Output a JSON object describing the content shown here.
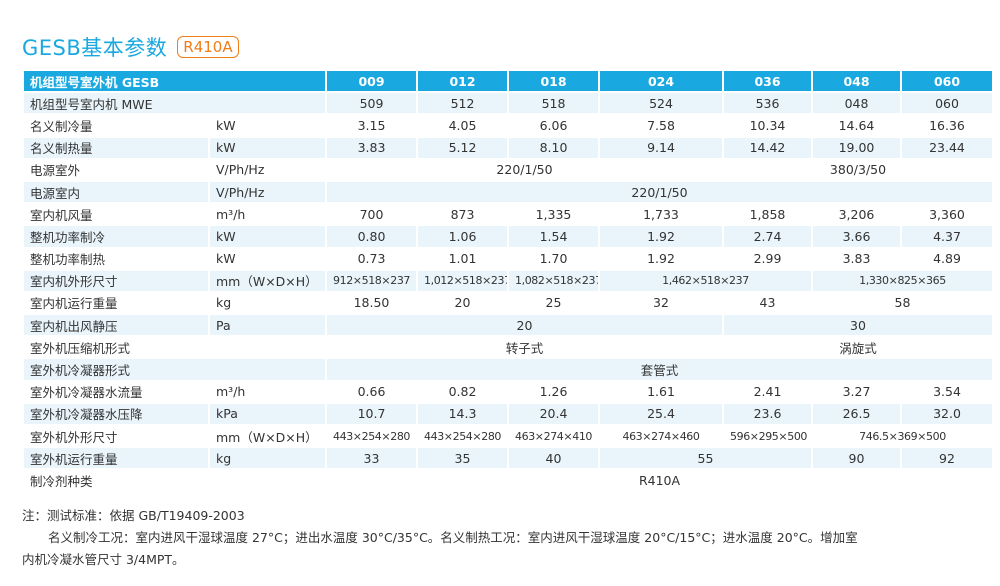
{
  "header": {
    "title": "GESB基本参数",
    "badge": "R410A"
  },
  "table": {
    "header_label": "机组型号室外机 GESB",
    "models": [
      "009",
      "012",
      "018",
      "024",
      "036",
      "048",
      "060"
    ],
    "rows": {
      "indoor_model": {
        "label": "机组型号室内机 MWE",
        "unit": "",
        "values": [
          "509",
          "512",
          "518",
          "524",
          "536",
          "048",
          "060"
        ]
      },
      "cooling": {
        "label": "名义制冷量",
        "unit": "kW",
        "values": [
          "3.15",
          "4.05",
          "6.06",
          "7.58",
          "10.34",
          "14.64",
          "16.36"
        ]
      },
      "heating": {
        "label": "名义制热量",
        "unit": "kW",
        "values": [
          "3.83",
          "5.12",
          "8.10",
          "9.14",
          "14.42",
          "19.00",
          "23.44"
        ]
      },
      "power_outdoor": {
        "label": "电源室外",
        "unit": "V/Ph/Hz",
        "values": [
          "220/1/50",
          "380/3/50"
        ]
      },
      "power_indoor": {
        "label": "电源室内",
        "unit": "V/Ph/Hz",
        "values": [
          "220/1/50"
        ]
      },
      "airflow": {
        "label": "室内机风量",
        "unit": "m³/h",
        "values": [
          "700",
          "873",
          "1,335",
          "1,733",
          "1,858",
          "3,206",
          "3,360"
        ]
      },
      "power_cool": {
        "label": "整机功率制冷",
        "unit": "kW",
        "values": [
          "0.80",
          "1.06",
          "1.54",
          "1.92",
          "2.74",
          "3.66",
          "4.37"
        ]
      },
      "power_heat": {
        "label": "整机功率制热",
        "unit": "kW",
        "values": [
          "0.73",
          "1.01",
          "1.70",
          "1.92",
          "2.99",
          "3.83",
          "4.89"
        ]
      },
      "indoor_dims": {
        "label": "室内机外形尺寸",
        "unit": "mm（W×D×H）",
        "values": [
          "912×518×237",
          "1,012×518×237",
          "1,082×518×237",
          "1,462×518×237",
          "1,330×825×365"
        ]
      },
      "indoor_weight": {
        "label": "室内机运行重量",
        "unit": "kg",
        "values": [
          "18.50",
          "20",
          "25",
          "32",
          "43",
          "58"
        ]
      },
      "static_pressure": {
        "label": "室内机出风静压",
        "unit": "Pa",
        "values": [
          "20",
          "30"
        ]
      },
      "compressor": {
        "label": "室外机压缩机形式",
        "unit": "",
        "values": [
          "转子式",
          "涡旋式"
        ]
      },
      "condenser": {
        "label": "室外机冷凝器形式",
        "unit": "",
        "values": [
          "套管式"
        ]
      },
      "water_flow": {
        "label": "室外机冷凝器水流量",
        "unit": "m³/h",
        "values": [
          "0.66",
          "0.82",
          "1.26",
          "1.61",
          "2.41",
          "3.27",
          "3.54"
        ]
      },
      "water_pressure": {
        "label": "室外机冷凝器水压降",
        "unit": "kPa",
        "values": [
          "10.7",
          "14.3",
          "20.4",
          "25.4",
          "23.6",
          "26.5",
          "32.0"
        ]
      },
      "outdoor_dims": {
        "label": "室外机外形尺寸",
        "unit": "mm（W×D×H）",
        "values": [
          "443×254×280",
          "443×254×280",
          "463×274×410",
          "463×274×460",
          "596×295×500",
          "746.5×369×500"
        ]
      },
      "outdoor_weight": {
        "label": "室外机运行重量",
        "unit": "kg",
        "values": [
          "33",
          "35",
          "40",
          "55",
          "90",
          "92"
        ]
      },
      "refrigerant": {
        "label": "制冷剂种类",
        "unit": "",
        "values": [
          "R410A"
        ]
      }
    }
  },
  "notes": {
    "line1": "注：测试标准：依据 GB/T19409-2003",
    "line2": "名义制冷工况：室内进风干湿球温度 27°C；进出水温度 30°C/35°C。名义制热工况：室内进风干湿球温度 20°C/15°C；进水温度 20°C。增加室",
    "line3": "内机冷凝水管尺寸 3/4MPT。"
  },
  "colors": {
    "accent": "#1aa8e0",
    "badge": "#ef7d1a",
    "stripe": "#e9f5fb"
  }
}
